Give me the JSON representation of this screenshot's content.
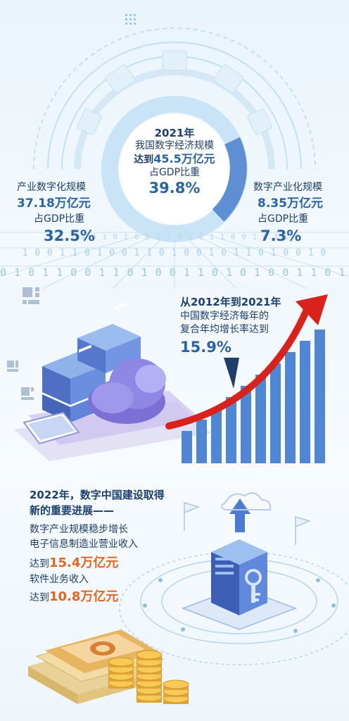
{
  "top": {
    "center": {
      "year": "2021年",
      "title": "我国数字经济规模",
      "amount_prefix": "达到",
      "amount": "45.5万亿元",
      "ratio_label": "占GDP比重",
      "ratio": "39.8%"
    },
    "left": {
      "title": "产业数字化规模",
      "amount": "37.18万亿元",
      "ratio_label": "占GDP比重",
      "ratio": "32.5%"
    },
    "right": {
      "title": "数字产业化规模",
      "amount": "8.35万亿元",
      "ratio_label": "占GDP比重",
      "ratio": "7.3%"
    },
    "binary_rows": [
      "0 1 1 0 0 1 0 1 0 0 1 1 0 1 0 1 1 0 0 1 0 1 0 1",
      "1 0 0 1 1 0 1 0 0 1 1 0 1 0 0 1 0 1 1 0 1 0 0 1 0",
      "0 1 0 1 1 0 0 1 1 0 1 0 0 1 1 0 1 0 1 0 0 1 1 0 1 0"
    ],
    "donut_colors": {
      "ring": "#c9e4f6",
      "highlight": "#5e8fd3",
      "center": "#ffffff"
    }
  },
  "middle": {
    "headline": "从2012年到2021年",
    "line2": "中国数字经济每年的",
    "line3": "复合年均增长率达到",
    "rate": "15.9%",
    "colors": {
      "bars": "#4f87d4",
      "arrow": "#d9221c"
    }
  },
  "bottom": {
    "heading1": "2022年，数字中国建设取得",
    "heading2": "新的重要进展——",
    "line1": "数字产业规模稳步增长",
    "line2": "电子信息制造业营业收入",
    "prefix1": "达到",
    "amount1": "15.4万亿元",
    "line3": "软件业务收入",
    "prefix2": "达到",
    "amount2": "10.8万亿元",
    "colors": {
      "accent": "#e2661f",
      "heading": "#1c3f6e"
    }
  }
}
